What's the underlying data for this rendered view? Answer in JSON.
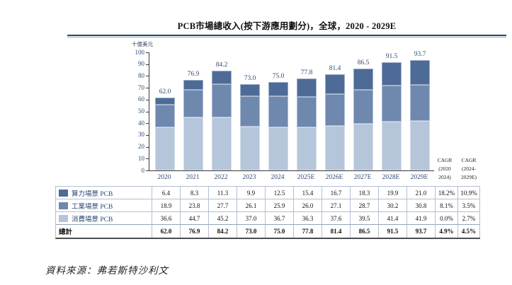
{
  "header": {
    "title": "PCB市場總收入(按下游應用劃分)，全球，2020 - 2029E"
  },
  "source_note": "資料來源：弗若斯特沙利文",
  "cagr_headers": {
    "col1": "CAGR\n(2020\n2024)",
    "col2": "CAGR\n(2024-\n2029E)"
  },
  "colors": {
    "computing": "#4e6b97",
    "industrial": "#6e88ae",
    "consumer": "#b5c5da",
    "axis_text": "#2e4a76",
    "rule_dark": "#24466f",
    "table_border": "#b3bfd2"
  },
  "chart_data": {
    "type": "bar",
    "stacked": true,
    "title": "PCB市場總收入(按下游應用劃分)，全球，2020 - 2029E",
    "ylabel": "十億美元",
    "ylim": [
      0,
      100
    ],
    "ytick_step": 10,
    "grid": false,
    "legend_position": "table-left",
    "categories": [
      "2020",
      "2021",
      "2022",
      "2023",
      "2024",
      "2025E",
      "2026E",
      "2027E",
      "2028E",
      "2029E"
    ],
    "series": [
      {
        "name": "算力場景 PCB",
        "key": "computing",
        "color": "#4e6b97",
        "values": [
          "6.4",
          "8.3",
          "11.3",
          "9.9",
          "12.5",
          "15.4",
          "16.7",
          "18.3",
          "19.9",
          "21.0"
        ],
        "cagr_2020_2024": "18.2%",
        "cagr_2024_2029e": "10.9%"
      },
      {
        "name": "工業場景 PCB",
        "key": "industrial",
        "color": "#6e88ae",
        "values": [
          "18.9",
          "23.8",
          "27.7",
          "26.1",
          "25.9",
          "26.0",
          "27.1",
          "28.7",
          "30.2",
          "30.8"
        ],
        "cagr_2020_2024": "8.1%",
        "cagr_2024_2029e": "3.5%"
      },
      {
        "name": "消費場景 PCB",
        "key": "consumer",
        "color": "#b5c5da",
        "values": [
          "36.6",
          "44.7",
          "45.2",
          "37.0",
          "36.7",
          "36.3",
          "37.6",
          "39.5",
          "41.4",
          "41.9"
        ],
        "cagr_2020_2024": "0.0%",
        "cagr_2024_2029e": "2.7%"
      }
    ],
    "totals": {
      "label": "總計",
      "values": [
        "62.0",
        "76.9",
        "84.2",
        "73.0",
        "75.0",
        "77.8",
        "81.4",
        "86.5",
        "91.5",
        "93.7"
      ],
      "cagr_2020_2024": "4.9%",
      "cagr_2024_2029e": "4.5%"
    }
  }
}
